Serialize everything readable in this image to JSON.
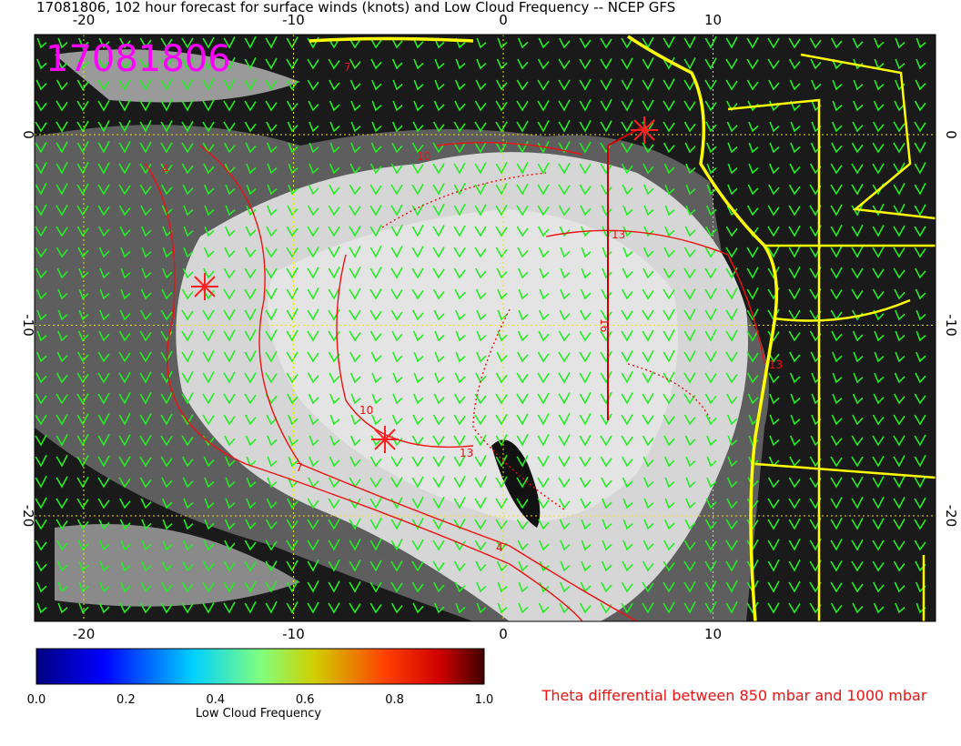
{
  "header": {
    "title": "17081806, 102 hour forecast for surface winds (knots) and Low Cloud Frequency -- NCEP GFS"
  },
  "map": {
    "stamp": "17081806",
    "lon_ticks": [
      -20,
      -10,
      0,
      10
    ],
    "lat_ticks": [
      0,
      -10,
      -20
    ],
    "contour_labels": [
      "7",
      "4",
      "10",
      "13",
      "16",
      "13",
      "10",
      "7",
      "4",
      "13"
    ]
  },
  "colorbar": {
    "ticks": [
      "0.0",
      "0.2",
      "0.4",
      "0.6",
      "0.8",
      "1.0"
    ],
    "label": "Low Cloud Frequency"
  },
  "legend": {
    "theta": "Theta differential between 850 mbar and 1000 mbar"
  }
}
